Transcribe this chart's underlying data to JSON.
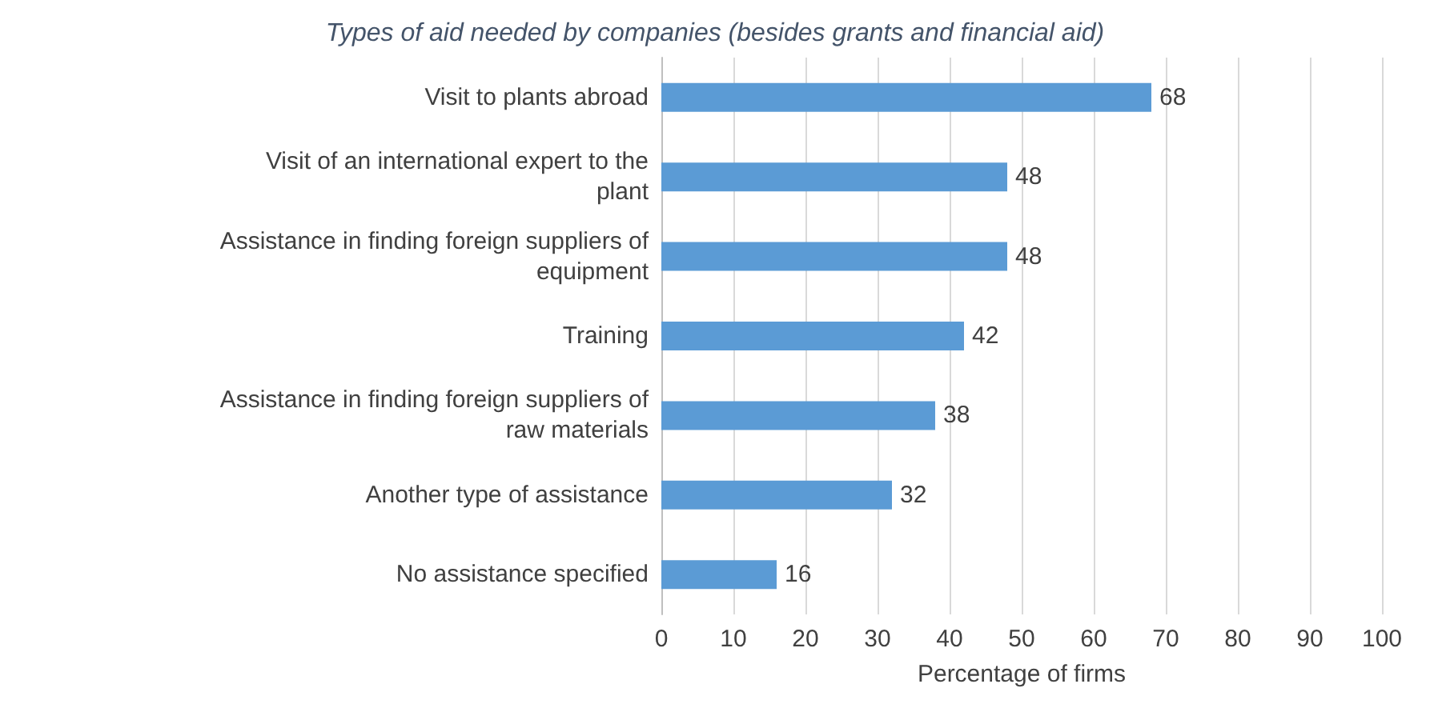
{
  "chart_data": {
    "type": "bar",
    "orientation": "horizontal",
    "title": "Types of aid needed by companies (besides grants and financial aid)",
    "xlabel": "Percentage of firms",
    "categories": [
      "Visit to plants abroad",
      "Visit of an international expert to the plant",
      "Assistance in finding foreign suppliers of equipment",
      "Training",
      "Assistance in finding foreign suppliers of raw materials",
      "Another type of assistance",
      "No assistance specified"
    ],
    "values": [
      68,
      48,
      48,
      42,
      38,
      32,
      16
    ],
    "color": "#5b9bd5",
    "data_labels": true,
    "xlim": [
      0,
      100
    ],
    "xticks": [
      0,
      10,
      20,
      30,
      40,
      50,
      60,
      70,
      80,
      90,
      100
    ],
    "grid": "x"
  }
}
